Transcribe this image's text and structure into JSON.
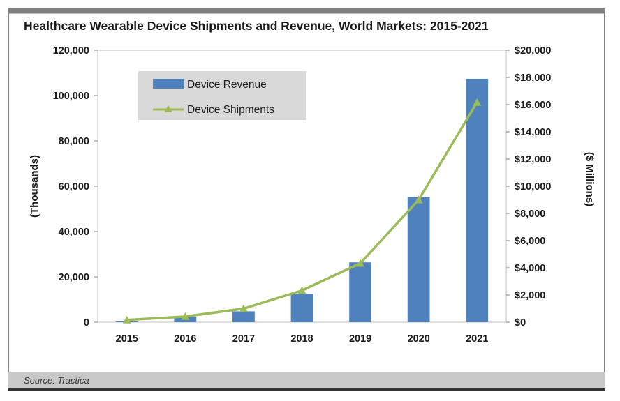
{
  "chart_data": {
    "type": "bar",
    "title": "Healthcare Wearable Device Shipments and Revenue, World Markets: 2015-2021",
    "categories": [
      "2015",
      "2016",
      "2017",
      "2018",
      "2019",
      "2020",
      "2021"
    ],
    "y_left": {
      "label": "(Thousands)",
      "range": [
        0,
        120000
      ],
      "ticks": [
        "0",
        "20,000",
        "40,000",
        "60,000",
        "80,000",
        "100,000",
        "120,000"
      ]
    },
    "y_right": {
      "label": "($ Millions)",
      "range": [
        0,
        20000
      ],
      "ticks": [
        "$0",
        "$2,000",
        "$4,000",
        "$6,000",
        "$8,000",
        "$10,000",
        "$12,000",
        "$14,000",
        "$16,000",
        "$18,000",
        "$20,000"
      ]
    },
    "series": [
      {
        "name": "Device Revenue",
        "type": "bar",
        "axis": "right",
        "color": "#4f81bd",
        "values": [
          60,
          400,
          800,
          2100,
          4400,
          9200,
          17900
        ]
      },
      {
        "name": "Device Shipments",
        "type": "line",
        "axis": "left",
        "color": "#9bbb59",
        "marker": "triangle",
        "values": [
          1000,
          2500,
          6000,
          14000,
          26000,
          54000,
          97000
        ]
      }
    ],
    "legend_position": "top-left",
    "grid": false
  },
  "footer": {
    "source": "Source: Tractica"
  }
}
